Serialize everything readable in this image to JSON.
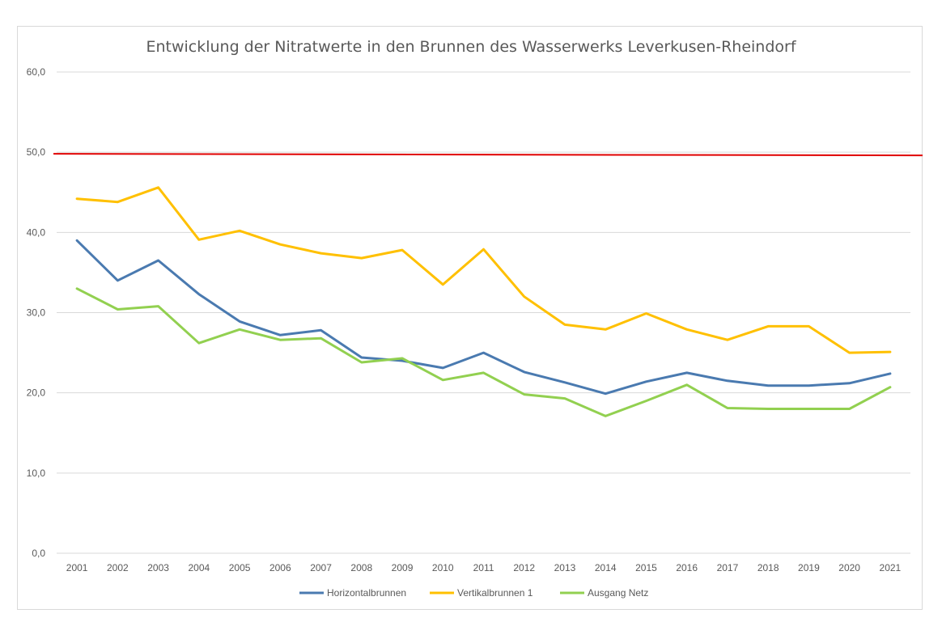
{
  "chart_data": {
    "type": "line",
    "title": "Entwicklung der Nitratwerte in den Brunnen des Wasserwerks Leverkusen-Rheindorf",
    "xlabel": "",
    "ylabel": "",
    "categories": [
      "2001",
      "2002",
      "2003",
      "2004",
      "2005",
      "2006",
      "2007",
      "2008",
      "2009",
      "2010",
      "2011",
      "2012",
      "2013",
      "2014",
      "2015",
      "2016",
      "2017",
      "2018",
      "2019",
      "2020",
      "2021"
    ],
    "ylim": [
      0,
      60
    ],
    "yticks": [
      0,
      10,
      20,
      30,
      40,
      50,
      60
    ],
    "ytick_labels": [
      "0,0",
      "10,0",
      "20,0",
      "30,0",
      "40,0",
      "50,0",
      "60,0"
    ],
    "grid": true,
    "legend_position": "bottom",
    "reference_line": {
      "value": 49.8,
      "color": "#e00000"
    },
    "series": [
      {
        "name": "Horizontalbrunnen",
        "color": "#4a7ab0",
        "values": [
          39.0,
          34.0,
          36.5,
          32.3,
          28.9,
          27.2,
          27.8,
          24.4,
          24.0,
          23.1,
          25.0,
          22.6,
          21.3,
          19.9,
          21.4,
          22.5,
          21.5,
          20.9,
          20.9,
          21.2,
          22.4
        ]
      },
      {
        "name": "Vertikalbrunnen 1",
        "color": "#ffc000",
        "values": [
          44.2,
          43.8,
          45.6,
          39.1,
          40.2,
          38.5,
          37.4,
          36.8,
          37.8,
          33.5,
          37.9,
          32.0,
          28.5,
          27.9,
          29.9,
          27.9,
          26.6,
          28.3,
          28.3,
          25.0,
          25.1
        ]
      },
      {
        "name": "Ausgang Netz",
        "color": "#92d050",
        "values": [
          33.0,
          30.4,
          30.8,
          26.2,
          27.9,
          26.6,
          26.8,
          23.8,
          24.3,
          21.6,
          22.5,
          19.8,
          19.3,
          17.1,
          19.0,
          21.0,
          18.1,
          18.0,
          18.0,
          18.0,
          20.7
        ]
      }
    ]
  }
}
